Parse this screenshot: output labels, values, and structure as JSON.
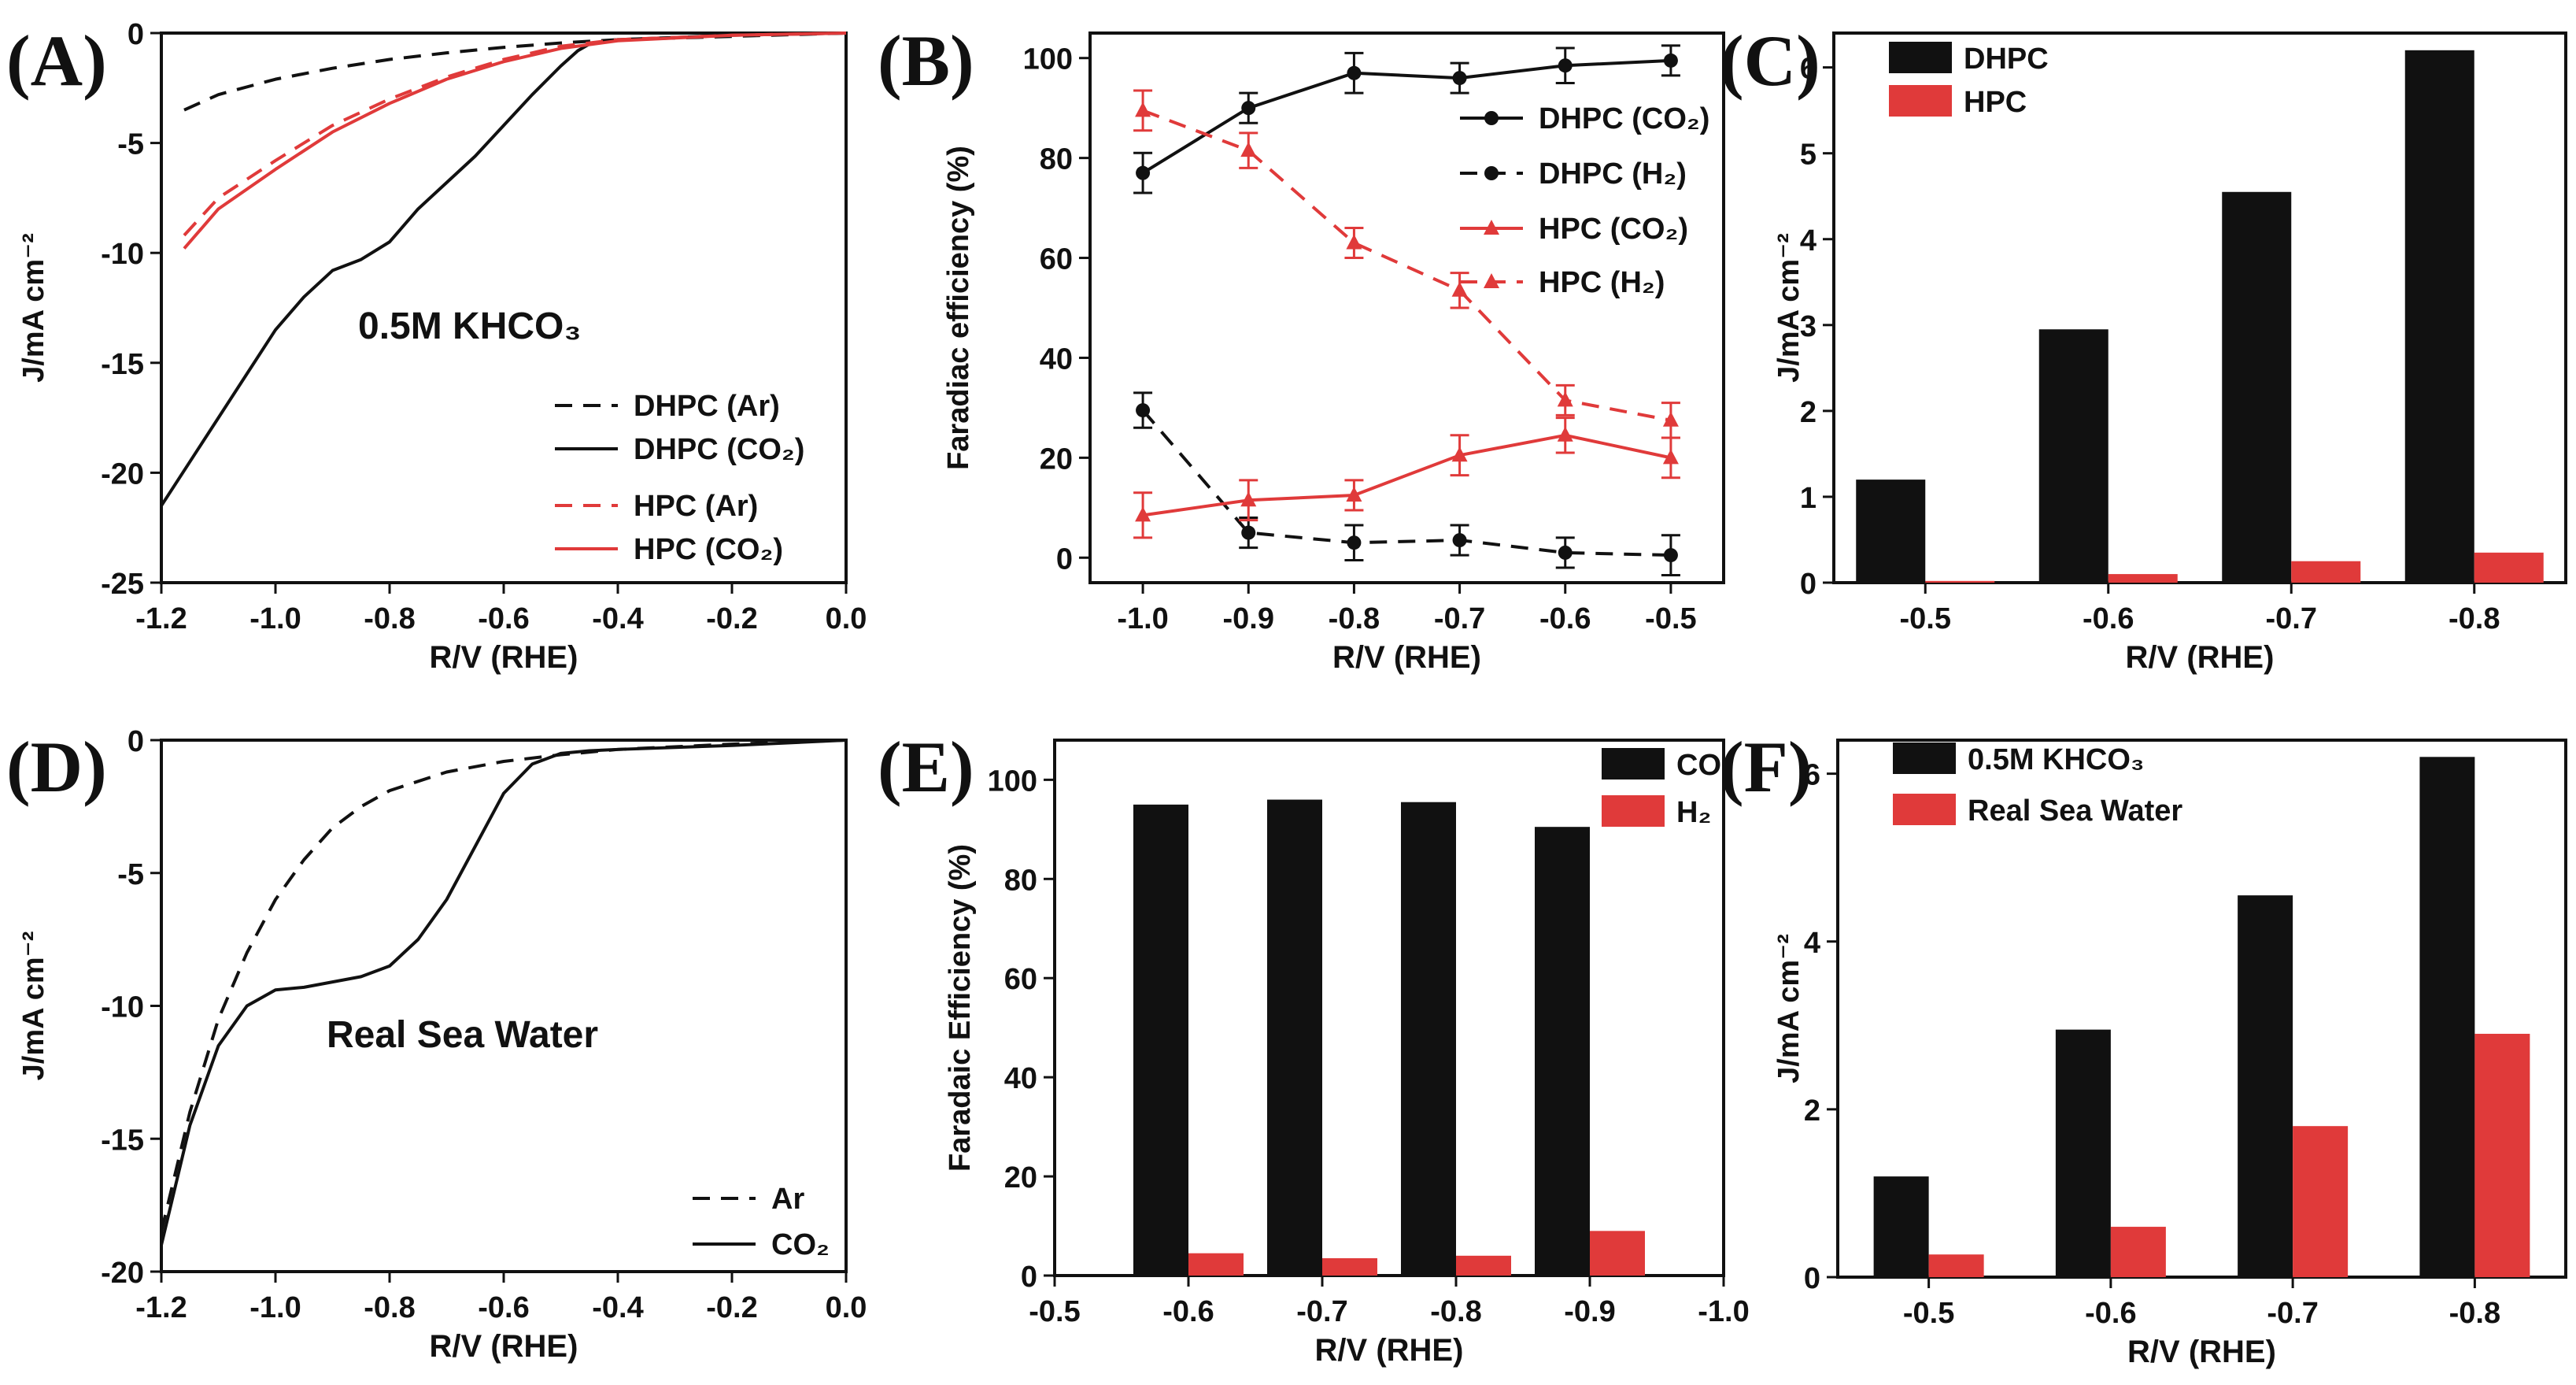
{
  "colors": {
    "black": "#111111",
    "red": "#e03a3a"
  },
  "chart_data": [
    {
      "id": "A",
      "type": "line",
      "label": "(A)",
      "title": "",
      "xlabel": "R/V (RHE)",
      "ylabel": "J/mA cm⁻²",
      "xlim": [
        -1.2,
        0.0
      ],
      "ylim": [
        -25,
        0
      ],
      "xticks": [
        -1.2,
        -1.0,
        -0.8,
        -0.6,
        -0.4,
        -0.2,
        0.0
      ],
      "xtick_labels": [
        "-1.2",
        "-1.0",
        "-0.8",
        "-0.6",
        "-0.4",
        "-0.2",
        "0.0"
      ],
      "yticks": [
        0,
        -5,
        -10,
        -15,
        -20,
        -25
      ],
      "ytick_labels": [
        "0",
        "-5",
        "-10",
        "-15",
        "-20",
        "-25"
      ],
      "annotation": "0.5M KHCO₃",
      "series": [
        {
          "name": "DHPC (Ar)",
          "color": "#111111",
          "dash": true,
          "x": [
            -1.16,
            -1.1,
            -1.0,
            -0.9,
            -0.8,
            -0.7,
            -0.6,
            -0.5,
            -0.4,
            -0.2,
            0.0
          ],
          "y": [
            -3.5,
            -2.8,
            -2.1,
            -1.6,
            -1.2,
            -0.9,
            -0.65,
            -0.45,
            -0.3,
            -0.15,
            0.0
          ]
        },
        {
          "name": "DHPC (CO₂)",
          "color": "#111111",
          "dash": false,
          "x": [
            -1.2,
            -1.15,
            -1.1,
            -1.05,
            -1.0,
            -0.95,
            -0.9,
            -0.85,
            -0.8,
            -0.75,
            -0.7,
            -0.65,
            -0.6,
            -0.55,
            -0.5,
            -0.47,
            -0.45,
            -0.4,
            -0.3,
            -0.2,
            0.0
          ],
          "y": [
            -21.5,
            -19.5,
            -17.5,
            -15.5,
            -13.5,
            -12.0,
            -10.8,
            -10.3,
            -9.5,
            -8.0,
            -6.8,
            -5.6,
            -4.2,
            -2.8,
            -1.5,
            -0.8,
            -0.5,
            -0.3,
            -0.2,
            -0.1,
            0.0
          ]
        },
        {
          "name": "HPC (Ar)",
          "color": "#e03a3a",
          "dash": true,
          "x": [
            -1.16,
            -1.1,
            -1.0,
            -0.9,
            -0.8,
            -0.7,
            -0.6,
            -0.5,
            -0.4,
            -0.2,
            0.0
          ],
          "y": [
            -9.2,
            -7.5,
            -5.8,
            -4.2,
            -3.0,
            -2.0,
            -1.2,
            -0.6,
            -0.3,
            -0.1,
            0.0
          ]
        },
        {
          "name": "HPC (CO₂)",
          "color": "#e03a3a",
          "dash": false,
          "x": [
            -1.16,
            -1.1,
            -1.0,
            -0.9,
            -0.8,
            -0.7,
            -0.6,
            -0.5,
            -0.4,
            -0.2,
            0.0
          ],
          "y": [
            -9.8,
            -8.0,
            -6.2,
            -4.5,
            -3.2,
            -2.1,
            -1.3,
            -0.7,
            -0.35,
            -0.1,
            0.0
          ]
        }
      ]
    },
    {
      "id": "B",
      "type": "line",
      "label": "(B)",
      "title": "",
      "xlabel": "R/V (RHE)",
      "ylabel": "Faradiac efficiency (%)",
      "xlim": [
        -1.05,
        -0.45
      ],
      "ylim": [
        -5,
        105
      ],
      "xticks": [
        -1.0,
        -0.9,
        -0.8,
        -0.7,
        -0.6,
        -0.5
      ],
      "xtick_labels": [
        "-1.0",
        "-0.9",
        "-0.8",
        "-0.7",
        "-0.6",
        "-0.5"
      ],
      "yticks": [
        0,
        20,
        40,
        60,
        80,
        100
      ],
      "ytick_labels": [
        "0",
        "20",
        "40",
        "60",
        "80",
        "100"
      ],
      "series": [
        {
          "name": "DHPC (CO₂)",
          "color": "#111111",
          "dash": false,
          "marker": "circle",
          "x": [
            -1.0,
            -0.9,
            -0.8,
            -0.7,
            -0.6,
            -0.5
          ],
          "y": [
            77,
            90,
            97,
            96,
            98.5,
            99.5
          ],
          "err": [
            4,
            3,
            4,
            3,
            3.5,
            3
          ]
        },
        {
          "name": "DHPC (H₂)",
          "color": "#111111",
          "dash": true,
          "marker": "circle",
          "x": [
            -1.0,
            -0.9,
            -0.8,
            -0.7,
            -0.6,
            -0.5
          ],
          "y": [
            29.5,
            5,
            3,
            3.5,
            1,
            0.5
          ],
          "err": [
            3.5,
            3,
            3.5,
            3,
            3,
            4
          ]
        },
        {
          "name": "HPC (CO₂)",
          "color": "#e03a3a",
          "dash": false,
          "marker": "triangle",
          "x": [
            -1.0,
            -0.9,
            -0.8,
            -0.7,
            -0.6,
            -0.5
          ],
          "y": [
            8.5,
            11.5,
            12.5,
            20.5,
            24.5,
            20
          ],
          "err": [
            4.5,
            4,
            3,
            4,
            3.5,
            4
          ]
        },
        {
          "name": "HPC (H₂)",
          "color": "#e03a3a",
          "dash": true,
          "marker": "triangle",
          "x": [
            -1.0,
            -0.9,
            -0.8,
            -0.7,
            -0.6,
            -0.5
          ],
          "y": [
            89.5,
            81.5,
            63,
            53.5,
            31.5,
            27.5
          ],
          "err": [
            4,
            3.5,
            3,
            3.5,
            3,
            3.5
          ]
        }
      ]
    },
    {
      "id": "C",
      "type": "bar",
      "label": "(C)",
      "title": "",
      "xlabel": "R/V (RHE)",
      "ylabel": "J/mA cm⁻²",
      "categories": [
        "-0.5",
        "-0.6",
        "-0.7",
        "-0.8"
      ],
      "ylim": [
        0,
        6.4
      ],
      "yticks": [
        0,
        1,
        2,
        3,
        4,
        5,
        6
      ],
      "ytick_labels": [
        "0",
        "1",
        "2",
        "3",
        "4",
        "5",
        "6"
      ],
      "series": [
        {
          "name": "DHPC",
          "color": "#111111",
          "values": [
            1.2,
            2.95,
            4.55,
            6.2
          ]
        },
        {
          "name": "HPC",
          "color": "#e03a3a",
          "values": [
            0.02,
            0.1,
            0.25,
            0.35
          ]
        }
      ]
    },
    {
      "id": "D",
      "type": "line",
      "label": "(D)",
      "title": "",
      "xlabel": "R/V (RHE)",
      "ylabel": "J/mA cm⁻²",
      "xlim": [
        -1.2,
        0.0
      ],
      "ylim": [
        -20,
        0
      ],
      "xticks": [
        -1.2,
        -1.0,
        -0.8,
        -0.6,
        -0.4,
        -0.2,
        0.0
      ],
      "xtick_labels": [
        "-1.2",
        "-1.0",
        "-0.8",
        "-0.6",
        "-0.4",
        "-0.2",
        "0.0"
      ],
      "yticks": [
        0,
        -5,
        -10,
        -15,
        -20
      ],
      "ytick_labels": [
        "0",
        "-5",
        "-10",
        "-15",
        "-20"
      ],
      "annotation": "Real Sea Water",
      "series": [
        {
          "name": "Ar",
          "color": "#111111",
          "dash": true,
          "x": [
            -1.2,
            -1.15,
            -1.1,
            -1.05,
            -1.0,
            -0.95,
            -0.9,
            -0.85,
            -0.8,
            -0.7,
            -0.6,
            -0.5,
            -0.4,
            -0.2,
            0.0
          ],
          "y": [
            -18.5,
            -14.0,
            -10.5,
            -8.0,
            -6.0,
            -4.5,
            -3.3,
            -2.5,
            -1.9,
            -1.2,
            -0.8,
            -0.55,
            -0.35,
            -0.15,
            0.0
          ]
        },
        {
          "name": "CO₂",
          "color": "#111111",
          "dash": false,
          "x": [
            -1.2,
            -1.15,
            -1.1,
            -1.05,
            -1.0,
            -0.95,
            -0.9,
            -0.85,
            -0.8,
            -0.75,
            -0.7,
            -0.65,
            -0.6,
            -0.55,
            -0.5,
            -0.45,
            -0.4,
            -0.2,
            0.0
          ],
          "y": [
            -19.0,
            -14.5,
            -11.5,
            -10.0,
            -9.4,
            -9.3,
            -9.1,
            -8.9,
            -8.5,
            -7.5,
            -6.0,
            -4.0,
            -2.0,
            -0.9,
            -0.5,
            -0.4,
            -0.35,
            -0.2,
            0.0
          ]
        }
      ]
    },
    {
      "id": "E",
      "type": "bar",
      "label": "(E)",
      "title": "",
      "xlabel": "R/V (RHE)",
      "ylabel": "Faradaic Efficiency (%)",
      "categories": [
        "-0.6",
        "-0.7",
        "-0.8",
        "-0.9"
      ],
      "category_positions": [
        -0.6,
        -0.7,
        -0.8,
        -0.9
      ],
      "xlim": [
        -0.5,
        -1.0
      ],
      "ylim": [
        0,
        108
      ],
      "xticks": [
        -0.5,
        -0.6,
        -0.7,
        -0.8,
        -0.9,
        -1.0
      ],
      "xtick_labels": [
        "-0.5",
        "-0.6",
        "-0.7",
        "-0.8",
        "-0.9",
        "-1.0"
      ],
      "yticks": [
        0,
        20,
        40,
        60,
        80,
        100
      ],
      "ytick_labels": [
        "0",
        "20",
        "40",
        "60",
        "80",
        "100"
      ],
      "series": [
        {
          "name": "CO",
          "color": "#111111",
          "values": [
            95,
            96,
            95.5,
            90.5
          ]
        },
        {
          "name": "H₂",
          "color": "#e03a3a",
          "values": [
            4.5,
            3.5,
            4,
            9
          ]
        }
      ]
    },
    {
      "id": "F",
      "type": "bar",
      "label": "(F)",
      "title": "",
      "xlabel": "R/V (RHE)",
      "ylabel": "J/mA cm⁻²",
      "categories": [
        "-0.5",
        "-0.6",
        "-0.7",
        "-0.8"
      ],
      "ylim": [
        0,
        6.4
      ],
      "yticks": [
        0,
        2,
        4,
        6
      ],
      "ytick_labels": [
        "0",
        "2",
        "4",
        "6"
      ],
      "series": [
        {
          "name": "0.5M KHCO₃",
          "color": "#111111",
          "values": [
            1.2,
            2.95,
            4.55,
            6.2
          ]
        },
        {
          "name": "Real Sea Water",
          "color": "#e03a3a",
          "values": [
            0.27,
            0.6,
            1.8,
            2.9
          ]
        }
      ]
    }
  ]
}
